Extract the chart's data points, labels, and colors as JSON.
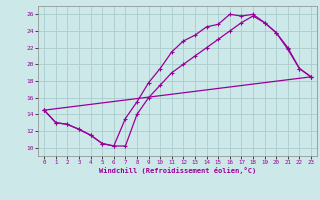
{
  "xlabel": "Windchill (Refroidissement éolien,°C)",
  "background_color": "#cce8e8",
  "line_color": "#990099",
  "grid_color": "#aacccc",
  "xlim": [
    -0.5,
    23.5
  ],
  "ylim": [
    9,
    27
  ],
  "xticks": [
    0,
    1,
    2,
    3,
    4,
    5,
    6,
    7,
    8,
    9,
    10,
    11,
    12,
    13,
    14,
    15,
    16,
    17,
    18,
    19,
    20,
    21,
    22,
    23
  ],
  "yticks": [
    10,
    12,
    14,
    16,
    18,
    20,
    22,
    24,
    26
  ],
  "curve1_x": [
    0,
    1,
    2,
    3,
    4,
    5,
    6,
    7,
    8,
    9,
    10,
    11,
    12,
    13,
    14,
    15,
    16,
    17,
    18,
    19,
    20,
    21,
    22,
    23
  ],
  "curve1_y": [
    14.5,
    13.0,
    12.8,
    12.2,
    11.5,
    10.5,
    10.2,
    13.5,
    15.5,
    17.8,
    19.5,
    21.5,
    22.8,
    23.5,
    24.5,
    24.8,
    26.0,
    25.8,
    26.0,
    25.0,
    23.8,
    21.8,
    19.5,
    18.5
  ],
  "curve2_x": [
    0,
    1,
    2,
    3,
    4,
    5,
    6,
    7,
    8,
    9,
    10,
    11,
    12,
    13,
    14,
    15,
    16,
    17,
    18,
    19,
    20,
    21,
    22,
    23
  ],
  "curve2_y": [
    14.5,
    13.0,
    12.8,
    12.2,
    11.5,
    10.5,
    10.2,
    10.2,
    14.0,
    16.0,
    17.5,
    19.0,
    20.0,
    21.0,
    22.0,
    23.0,
    24.0,
    25.0,
    25.8,
    25.0,
    23.8,
    22.0,
    19.5,
    18.5
  ],
  "curve3_x": [
    0,
    23
  ],
  "curve3_y": [
    14.5,
    18.5
  ]
}
